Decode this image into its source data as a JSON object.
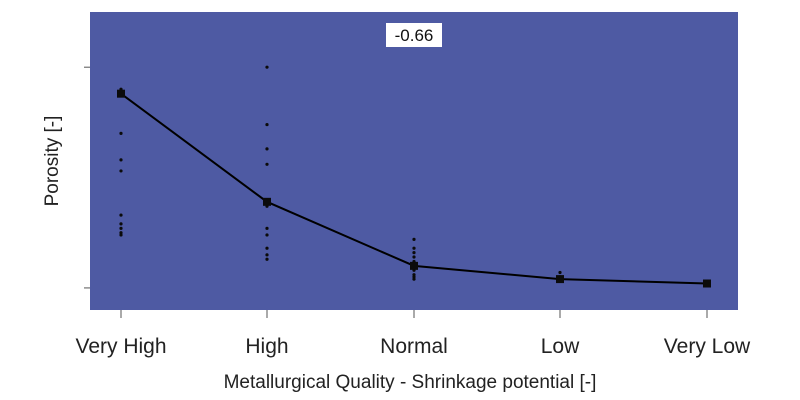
{
  "chart_data": {
    "type": "line",
    "title": "",
    "annotation": "-0.66",
    "xlabel": "Metallurgical Quality - Shrinkage potential [-]",
    "ylabel": "Porosity [-]",
    "categories": [
      "Very High",
      "High",
      "Normal",
      "Low",
      "Very Low"
    ],
    "series": [
      {
        "values": [
          0.88,
          0.39,
          0.1,
          0.04,
          0.02
        ]
      }
    ],
    "scatter": [
      [
        0.9,
        0.89,
        0.7,
        0.58,
        0.53,
        0.33,
        0.29,
        0.27,
        0.25,
        0.24
      ],
      [
        1.0,
        0.74,
        0.63,
        0.56,
        0.4,
        0.37,
        0.27,
        0.24,
        0.18,
        0.15,
        0.13
      ],
      [
        0.22,
        0.18,
        0.16,
        0.14,
        0.12,
        0.1,
        0.08,
        0.06,
        0.05,
        0.04
      ],
      [
        0.07,
        0.05,
        0.04,
        0.03
      ],
      [
        0.03,
        0.02,
        0.01
      ]
    ],
    "ylim": [
      -0.1,
      1.25
    ],
    "y_ticks": [
      0.0,
      1.0
    ],
    "grid": false,
    "y_tick_labels_visible": false,
    "plot_background": "#4e5aa3",
    "line_color": "#000000",
    "marker_color": "#0b0b0b"
  }
}
